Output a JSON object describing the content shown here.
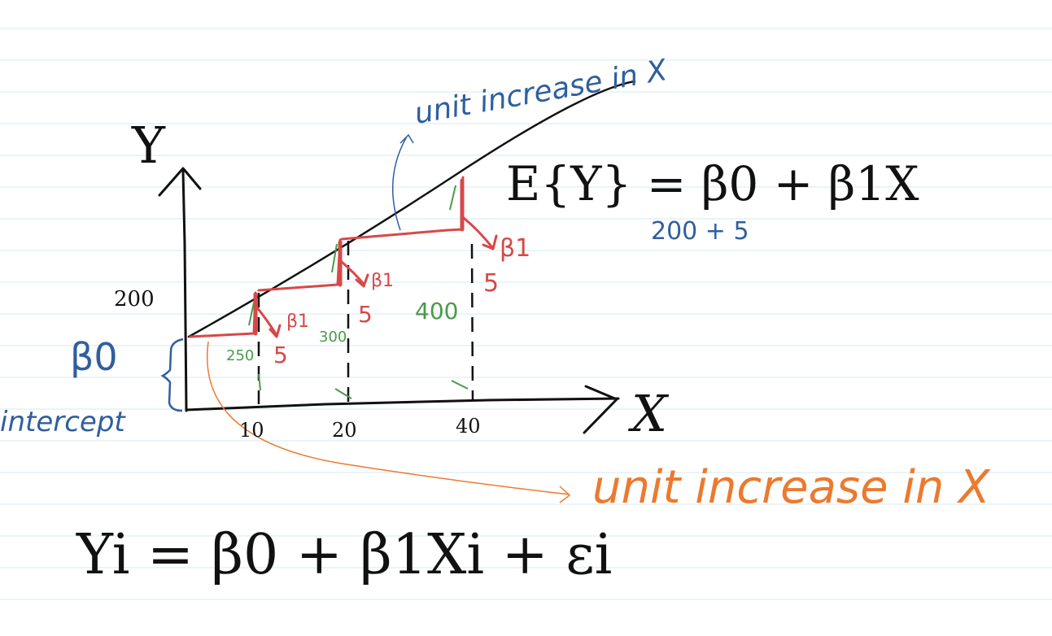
{
  "colors": {
    "paper_rule": "#d6e8f2",
    "ink_black": "#111111",
    "ink_blue": "#2f5f9e",
    "ink_red": "#d84848",
    "ink_green": "#4a9a4a",
    "ink_orange": "#ec7a2e"
  },
  "axes": {
    "y_label": "Y",
    "x_label": "X",
    "x_ticks": [
      "10",
      "20",
      "40"
    ],
    "y_tick": "200"
  },
  "labels": {
    "beta0": "β0",
    "intercept": "intercept",
    "unit_increase_top": "unit increase in X",
    "unit_increase_bottom": "unit increase in X",
    "regression_line_eq": "E{Y} = β0 + β1X",
    "example_values": "200 + 5",
    "model_eq": "Yi = β0 + β1Xi + εi"
  },
  "step_annotations": {
    "beta1": "β1",
    "slope_value": "5",
    "point_values": [
      "250",
      "300",
      "400"
    ]
  }
}
